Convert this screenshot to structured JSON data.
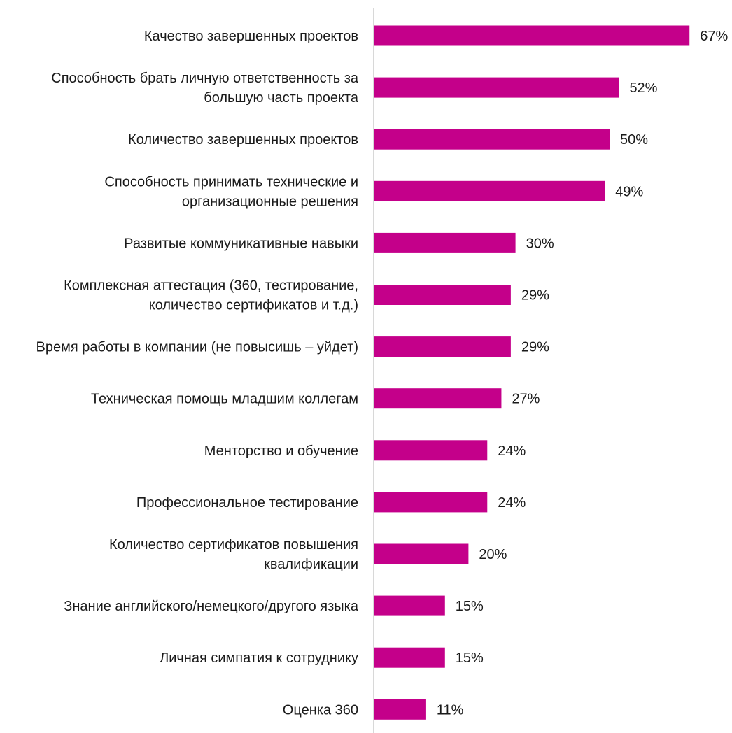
{
  "chart_data": {
    "type": "bar",
    "orientation": "horizontal",
    "categories": [
      [
        "Качество завершенных проектов"
      ],
      [
        "Способность брать личную ответственность за",
        "большую часть проекта"
      ],
      [
        "Количество завершенных проектов"
      ],
      [
        "Способность принимать технические и",
        "организационные решения"
      ],
      [
        "Развитые коммуникативные навыки"
      ],
      [
        "Комплексная аттестация (360, тестирование,",
        "количество сертификатов и т.д.)"
      ],
      [
        "Время работы в компании (не повысишь – уйдет)"
      ],
      [
        "Техническая помощь младшим коллегам"
      ],
      [
        "Менторство и обучение"
      ],
      [
        "Профессиональное тестирование"
      ],
      [
        "Количество сертификатов повышения",
        "квалификации"
      ],
      [
        "Знание английского/немецкого/другого языка"
      ],
      [
        "Личная симпатия к сотруднику"
      ],
      [
        "Оценка 360"
      ]
    ],
    "values": [
      67,
      52,
      50,
      49,
      30,
      29,
      29,
      27,
      24,
      24,
      20,
      15,
      15,
      11
    ],
    "value_labels": [
      "67%",
      "52%",
      "50%",
      "49%",
      "30%",
      "29%",
      "29%",
      "27%",
      "24%",
      "24%",
      "20%",
      "15%",
      "15%",
      "11%"
    ],
    "xlim": [
      0,
      70
    ],
    "grid": false,
    "bar_color": "#C4008A",
    "axis_color": "#cccccc"
  }
}
